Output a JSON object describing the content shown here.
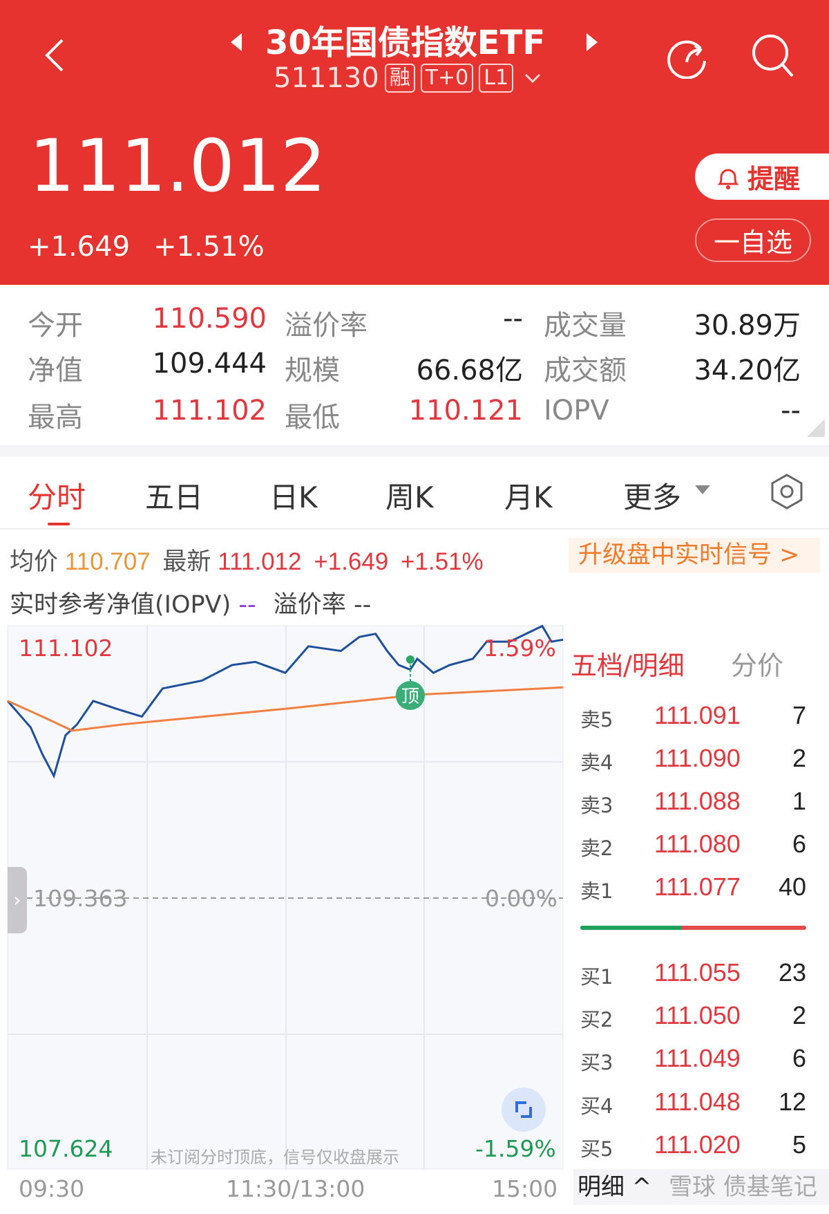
{
  "header": {
    "title": "30年国债指数ETF",
    "code": "511130",
    "tags": [
      "融",
      "T+0",
      "L1"
    ],
    "price": "111.012",
    "change": "+1.649",
    "change_pct": "+1.51%",
    "alert_label": "提醒",
    "watch_label": "一自选",
    "icons": [
      "back-icon",
      "prev-icon",
      "next-icon",
      "refresh-icon",
      "search-icon",
      "bell-icon",
      "chevron-down-icon"
    ]
  },
  "stats": [
    [
      {
        "label": "今开",
        "value": "110.590",
        "color": "red"
      },
      {
        "label": "溢价率",
        "value": "--",
        "color": "black"
      },
      {
        "label": "成交量",
        "value": "30.89万",
        "color": "black"
      }
    ],
    [
      {
        "label": "净值",
        "value": "109.444",
        "color": "black"
      },
      {
        "label": "规模",
        "value": "66.68亿",
        "color": "black"
      },
      {
        "label": "成交额",
        "value": "34.20亿",
        "color": "black"
      }
    ],
    [
      {
        "label": "最高",
        "value": "111.102",
        "color": "red"
      },
      {
        "label": "最低",
        "value": "110.121",
        "color": "red"
      },
      {
        "label": "IOPV",
        "value": "--",
        "color": "black"
      }
    ]
  ],
  "tabs": [
    "分时",
    "五日",
    "日K",
    "周K",
    "月K",
    "更多"
  ],
  "active_tab": "分时",
  "info": {
    "avg_label": "均价",
    "avg_value": "110.707",
    "latest_label": "最新",
    "latest_value": "111.012",
    "latest_change": "+1.649",
    "latest_pct": "+1.51%",
    "upgrade_label": "升级盘中实时信号 >",
    "iopv_label": "实时参考净值(IOPV)",
    "iopv_value": "--",
    "premium_label": "溢价率",
    "premium_value": "--"
  },
  "chart_data": {
    "type": "line",
    "y_max_label": "111.102",
    "y_mid_label": "109.363",
    "y_min_label": "107.624",
    "pct_max_label": "1.59%",
    "pct_mid_label": "0.00%",
    "pct_min_label": "-1.59%",
    "ylim": [
      107.624,
      111.102
    ],
    "x_ticks": [
      "09:30",
      "11:30/13:00",
      "15:00"
    ],
    "signal_label": "顶",
    "note": "未订阅分时顶底，信号仅收盘展示",
    "colors": {
      "price": "#1d4f9c",
      "avg": "#f08040"
    },
    "series": [
      {
        "key": "price",
        "points": [
          [
            "09:30",
            110.62
          ],
          [
            "09:40",
            110.45
          ],
          [
            "09:45",
            110.28
          ],
          [
            "09:50",
            110.14
          ],
          [
            "09:55",
            110.4
          ],
          [
            "10:00",
            110.47
          ],
          [
            "10:07",
            110.62
          ],
          [
            "10:17",
            110.57
          ],
          [
            "10:28",
            110.52
          ],
          [
            "10:37",
            110.7
          ],
          [
            "10:54",
            110.75
          ],
          [
            "11:07",
            110.85
          ],
          [
            "11:17",
            110.87
          ],
          [
            "11:30",
            110.8
          ],
          [
            "13:10",
            110.97
          ],
          [
            "13:24",
            110.94
          ],
          [
            "13:32",
            111.03
          ],
          [
            "13:39",
            111.05
          ],
          [
            "13:44",
            110.94
          ],
          [
            "13:49",
            110.85
          ],
          [
            "13:54",
            110.82
          ],
          [
            "13:57",
            110.89
          ],
          [
            "14:04",
            110.8
          ],
          [
            "14:11",
            110.85
          ],
          [
            "14:21",
            110.89
          ],
          [
            "14:27",
            111.0
          ],
          [
            "14:37",
            111.0
          ],
          [
            "14:51",
            111.1
          ],
          [
            "14:55",
            111.0
          ],
          [
            "15:00",
            111.012
          ]
        ]
      },
      {
        "key": "avg",
        "points": [
          [
            "09:30",
            110.62
          ],
          [
            "09:45",
            110.52
          ],
          [
            "09:58",
            110.43
          ],
          [
            "10:20",
            110.47
          ],
          [
            "11:30",
            110.57
          ],
          [
            "13:57",
            110.66
          ],
          [
            "15:00",
            110.707
          ]
        ]
      }
    ]
  },
  "orderbook": {
    "tab_active": "五档/明细",
    "tab_other": "分价",
    "sell": [
      {
        "label": "卖5",
        "price": "111.091",
        "qty": "7"
      },
      {
        "label": "卖4",
        "price": "111.090",
        "qty": "2"
      },
      {
        "label": "卖3",
        "price": "111.088",
        "qty": "1"
      },
      {
        "label": "卖2",
        "price": "111.080",
        "qty": "6"
      },
      {
        "label": "卖1",
        "price": "111.077",
        "qty": "40"
      }
    ],
    "buy": [
      {
        "label": "买1",
        "price": "111.055",
        "qty": "23"
      },
      {
        "label": "买2",
        "price": "111.050",
        "qty": "2"
      },
      {
        "label": "买3",
        "price": "111.049",
        "qty": "6"
      },
      {
        "label": "买4",
        "price": "111.048",
        "qty": "12"
      },
      {
        "label": "买5",
        "price": "111.020",
        "qty": "5"
      }
    ],
    "buy_ratio": 0.45,
    "detail_label": "明细 ^"
  },
  "watermark": "雪球 债基笔记"
}
